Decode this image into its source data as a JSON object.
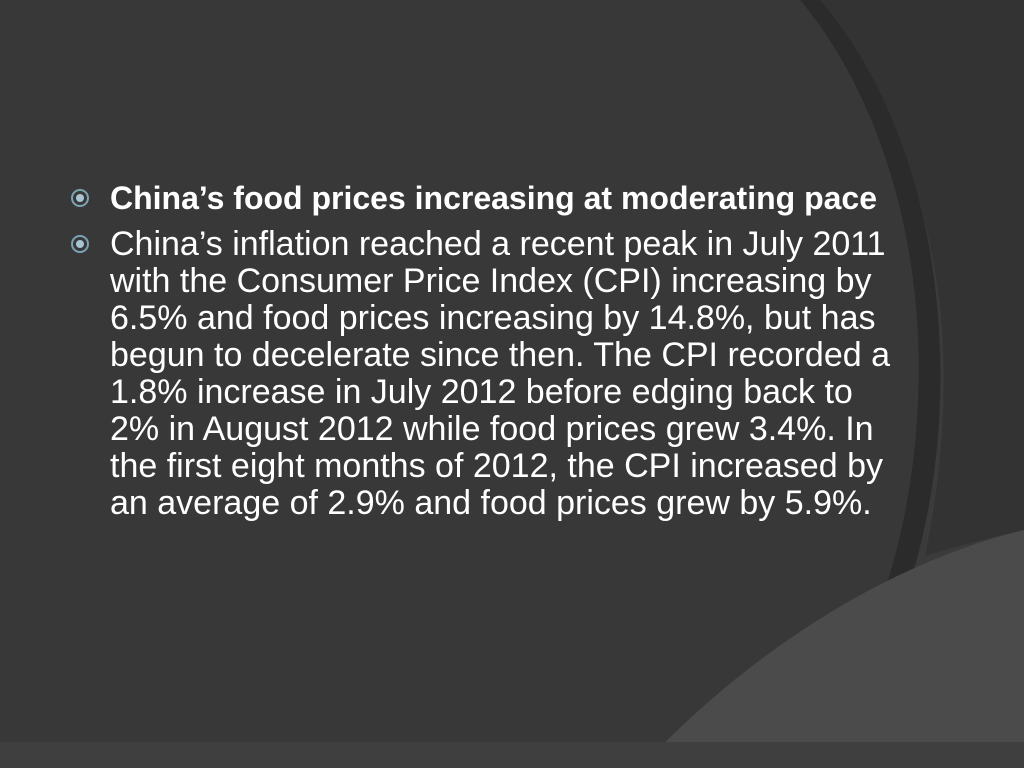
{
  "theme": {
    "background": "#3b3b3b",
    "panel": "#2c2c2c",
    "curve_light": "#4a4a4a",
    "text": "#ffffff",
    "bullet_ring": "#7aa3b3",
    "bullet_dot": "#a8c6d2"
  },
  "slide": {
    "bullets": [
      {
        "icon": "circle-dot-bullet-icon",
        "bold": true,
        "text": "China’s food prices increasing at moderating pace"
      },
      {
        "icon": "circle-dot-bullet-icon",
        "bold": false,
        "text": "China’s inflation reached a recent peak in July 2011 with the Consumer Price Index (CPI) increasing by 6.5% and food prices increasing by 14.8%, but has begun to decelerate since then.  The CPI recorded a 1.8% increase in July 2012 before edging back to 2% in August 2012 while food prices grew 3.4%.  In the first eight months of 2012, the CPI increased by an average of 2.9% and food prices grew by 5.9%."
      }
    ]
  }
}
